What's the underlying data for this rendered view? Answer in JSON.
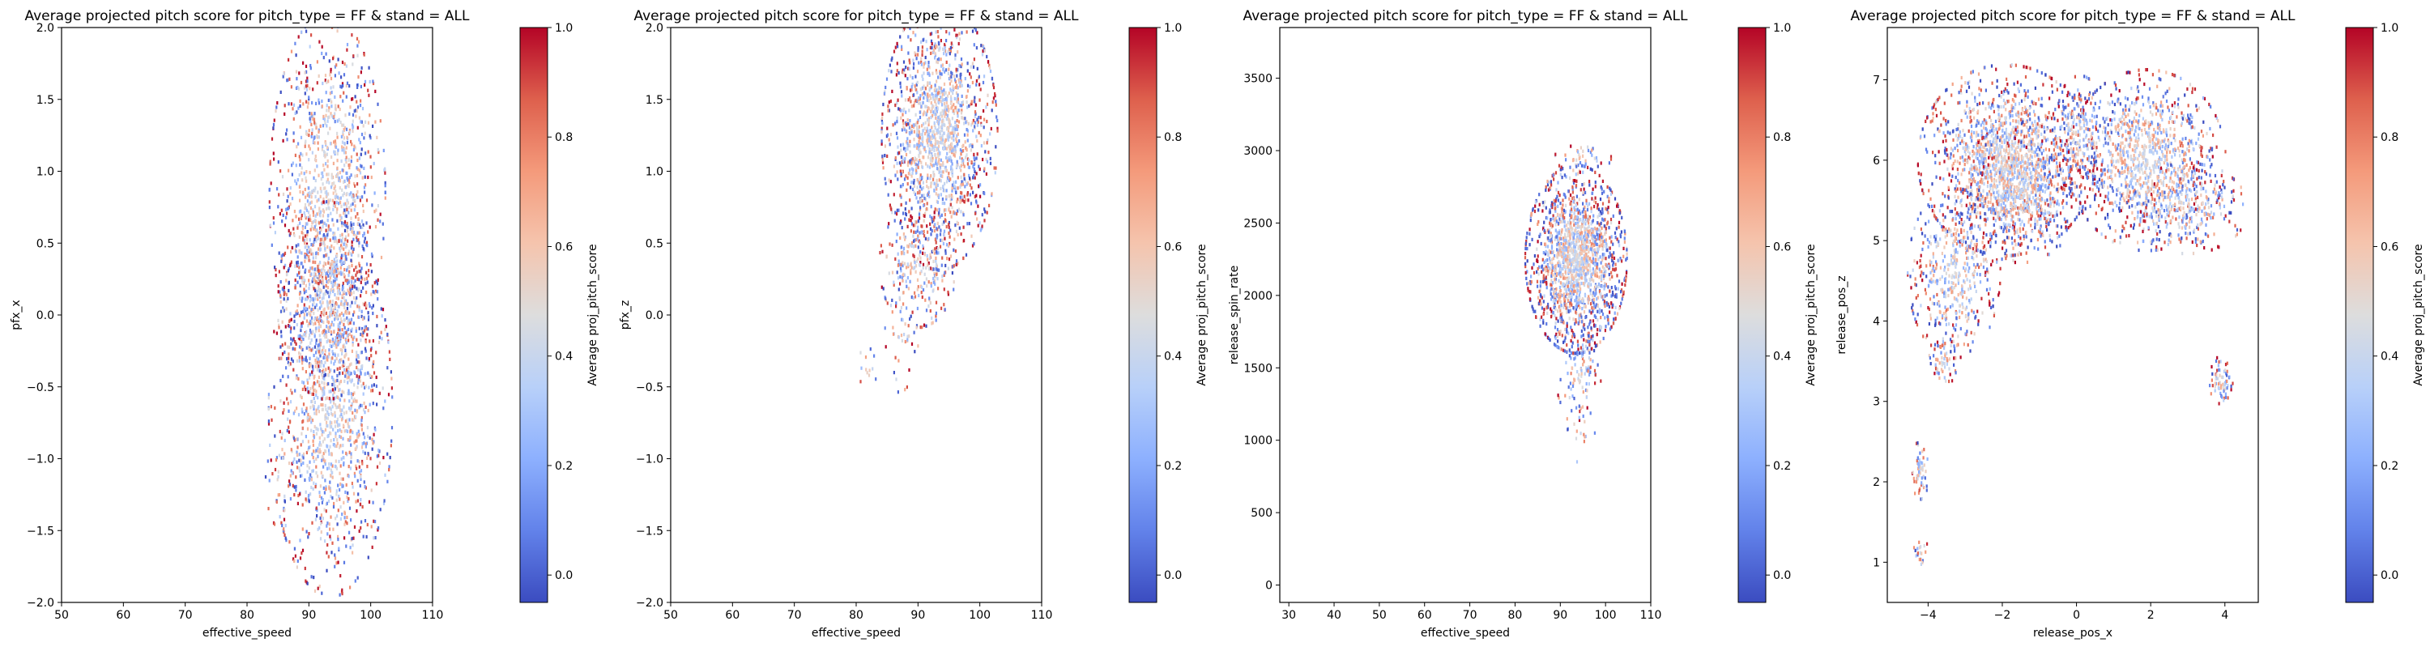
{
  "charts": [
    {
      "type": "heatmap",
      "title": "Average projected pitch score for pitch_type = FF & stand = ALL",
      "xlabel": "effective_speed",
      "ylabel": "pfx_x",
      "colorbar_label": "Average proj_pitch_score",
      "xlim": [
        50,
        110
      ],
      "ylim": [
        -2.0,
        2.0
      ],
      "xticks": [
        50,
        60,
        70,
        80,
        90,
        100,
        110
      ],
      "xtick_labels": [
        "50",
        "60",
        "70",
        "80",
        "90",
        "100",
        "110"
      ],
      "yticks": [
        -2.0,
        -1.5,
        -1.0,
        -0.5,
        0.0,
        0.5,
        1.0,
        1.5,
        2.0
      ],
      "ytick_labels": [
        "−2.0",
        "−1.5",
        "−1.0",
        "−0.5",
        "0.0",
        "0.5",
        "1.0",
        "1.5",
        "2.0"
      ],
      "cbar_range": [
        -0.05,
        1.0
      ],
      "cbar_ticks": [
        0.0,
        0.2,
        0.4,
        0.6,
        0.8,
        1.0
      ],
      "cbar_tick_labels": [
        "0.0",
        "0.2",
        "0.4",
        "0.6",
        "0.8",
        "1.0"
      ],
      "colormap": "coolwarm",
      "clusters": [
        {
          "cx": 93,
          "cy": 0.85,
          "rx": 7.5,
          "ry": 1.0,
          "n": 1100
        },
        {
          "cx": 93.5,
          "cy": -0.65,
          "rx": 8.0,
          "ry": 1.05,
          "n": 1200
        },
        {
          "cx": 93,
          "cy": 0.1,
          "rx": 6.5,
          "ry": 0.55,
          "n": 500
        },
        {
          "cx": 86,
          "cy": -1.0,
          "rx": 3.0,
          "ry": 0.4,
          "n": 40
        }
      ]
    },
    {
      "type": "heatmap",
      "title": "Average projected pitch score for pitch_type = FF & stand = ALL",
      "xlabel": "effective_speed",
      "ylabel": "pfx_z",
      "colorbar_label": "Average proj_pitch_score",
      "xlim": [
        50,
        110
      ],
      "ylim": [
        -2.0,
        2.0
      ],
      "xticks": [
        50,
        60,
        70,
        80,
        90,
        100,
        110
      ],
      "xtick_labels": [
        "50",
        "60",
        "70",
        "80",
        "90",
        "100",
        "110"
      ],
      "yticks": [
        -2.0,
        -1.5,
        -1.0,
        -0.5,
        0.0,
        0.5,
        1.0,
        1.5,
        2.0
      ],
      "ytick_labels": [
        "−2.0",
        "−1.5",
        "−1.0",
        "−0.5",
        "0.0",
        "0.5",
        "1.0",
        "1.5",
        "2.0"
      ],
      "cbar_range": [
        -0.05,
        1.0
      ],
      "cbar_ticks": [
        0.0,
        0.2,
        0.4,
        0.6,
        0.8,
        1.0
      ],
      "cbar_tick_labels": [
        "0.0",
        "0.2",
        "0.4",
        "0.6",
        "0.8",
        "1.0"
      ],
      "colormap": "coolwarm",
      "clusters": [
        {
          "cx": 93.5,
          "cy": 1.25,
          "rx": 7.5,
          "ry": 0.75,
          "n": 1500
        },
        {
          "cx": 90,
          "cy": 0.35,
          "rx": 5.0,
          "ry": 0.35,
          "n": 250
        },
        {
          "cx": 87,
          "cy": -0.1,
          "rx": 2.5,
          "ry": 0.35,
          "n": 40
        },
        {
          "cx": 82,
          "cy": -0.4,
          "rx": 1.5,
          "ry": 0.15,
          "n": 12
        }
      ]
    },
    {
      "type": "heatmap",
      "title": "Average projected pitch score for pitch_type = FF & stand = ALL",
      "xlabel": "effective_speed",
      "ylabel": "release_spin_rate",
      "colorbar_label": "Average proj_pitch_score",
      "xlim": [
        28,
        110
      ],
      "ylim": [
        -120,
        3850
      ],
      "xticks": [
        30,
        40,
        50,
        60,
        70,
        80,
        90,
        100,
        110
      ],
      "xtick_labels": [
        "30",
        "40",
        "50",
        "60",
        "70",
        "80",
        "90",
        "100",
        "110"
      ],
      "yticks": [
        0,
        500,
        1000,
        1500,
        2000,
        2500,
        3000,
        3500
      ],
      "ytick_labels": [
        "0",
        "500",
        "1000",
        "1500",
        "2000",
        "2500",
        "3000",
        "3500"
      ],
      "cbar_range": [
        -0.05,
        1.0
      ],
      "cbar_ticks": [
        0.0,
        0.2,
        0.4,
        0.6,
        0.8,
        1.0
      ],
      "cbar_tick_labels": [
        "0.0",
        "0.2",
        "0.4",
        "0.6",
        "0.8",
        "1.0"
      ],
      "colormap": "coolwarm",
      "clusters": [
        {
          "cx": 93.5,
          "cy": 2250,
          "rx": 9.0,
          "ry": 520,
          "n": 1700
        },
        {
          "cx": 94,
          "cy": 1450,
          "rx": 4.0,
          "ry": 250,
          "n": 90
        },
        {
          "cx": 95,
          "cy": 2950,
          "rx": 5.0,
          "ry": 80,
          "n": 40
        },
        {
          "cx": 94,
          "cy": 1100,
          "rx": 3.0,
          "ry": 200,
          "n": 20
        }
      ]
    },
    {
      "type": "heatmap",
      "title": "Average projected pitch score for pitch_type = FF & stand = ALL",
      "xlabel": "release_pos_x",
      "ylabel": "release_pos_z",
      "colorbar_label": "Average proj_pitch_score",
      "xlim": [
        -5.1,
        4.9
      ],
      "ylim": [
        0.5,
        7.65
      ],
      "xticks": [
        -4,
        -2,
        0,
        2,
        4
      ],
      "xtick_labels": [
        "−4",
        "−2",
        "0",
        "2",
        "4"
      ],
      "yticks": [
        1,
        2,
        3,
        4,
        5,
        6,
        7
      ],
      "ytick_labels": [
        "1",
        "2",
        "3",
        "4",
        "5",
        "6",
        "7"
      ],
      "cbar_range": [
        -0.05,
        1.0
      ],
      "cbar_ticks": [
        0.0,
        0.2,
        0.4,
        0.6,
        0.8,
        1.0
      ],
      "cbar_tick_labels": [
        "0.0",
        "0.2",
        "0.4",
        "0.6",
        "0.8",
        "1.0"
      ],
      "colormap": "coolwarm",
      "clusters": [
        {
          "cx": -1.9,
          "cy": 6.0,
          "rx": 1.9,
          "ry": 0.95,
          "n": 1500
        },
        {
          "cx": -3.3,
          "cy": 4.6,
          "rx": 1.0,
          "ry": 0.85,
          "n": 450
        },
        {
          "cx": -1.5,
          "cy": 5.6,
          "rx": 1.3,
          "ry": 0.7,
          "n": 500
        },
        {
          "cx": 1.9,
          "cy": 6.0,
          "rx": 1.7,
          "ry": 0.9,
          "n": 1100
        },
        {
          "cx": 3.0,
          "cy": 5.4,
          "rx": 1.3,
          "ry": 0.45,
          "n": 250
        },
        {
          "cx": 0.1,
          "cy": 6.3,
          "rx": 0.6,
          "ry": 0.6,
          "n": 180
        },
        {
          "cx": -4.2,
          "cy": 2.15,
          "rx": 0.2,
          "ry": 0.3,
          "n": 60
        },
        {
          "cx": -4.2,
          "cy": 1.15,
          "rx": 0.15,
          "ry": 0.15,
          "n": 20
        },
        {
          "cx": 3.9,
          "cy": 3.25,
          "rx": 0.25,
          "ry": 0.25,
          "n": 70
        },
        {
          "cx": -3.6,
          "cy": 3.5,
          "rx": 0.3,
          "ry": 0.3,
          "n": 60
        }
      ]
    }
  ]
}
